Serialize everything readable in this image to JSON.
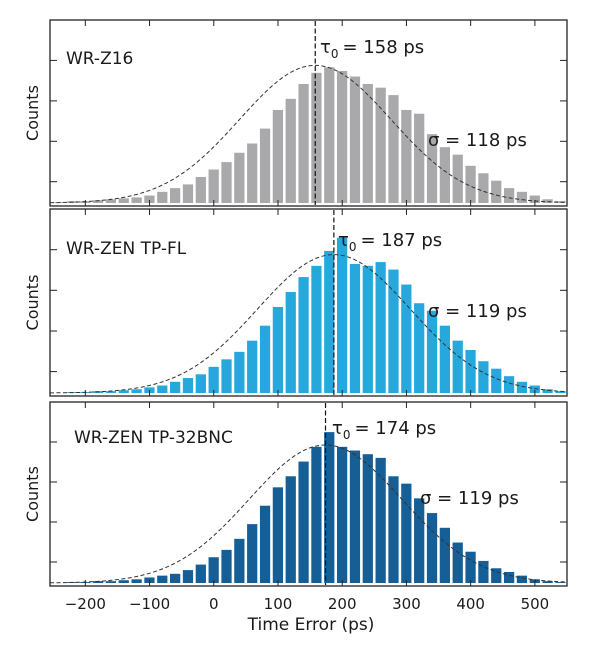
{
  "chart_data": {
    "type": "bar",
    "xlabel": "Time  Error (ps)",
    "ylabel": "Counts",
    "xlim": [
      -255,
      550
    ],
    "xticks": [
      -200,
      -100,
      0,
      100,
      200,
      300,
      400,
      500
    ],
    "bin_width": 20,
    "bin_starts": [
      -250,
      -230,
      -210,
      -190,
      -170,
      -150,
      -130,
      -110,
      -90,
      -70,
      -50,
      -30,
      -10,
      10,
      30,
      50,
      70,
      90,
      110,
      130,
      150,
      170,
      190,
      210,
      230,
      250,
      270,
      290,
      310,
      330,
      350,
      370,
      390,
      410,
      430,
      450,
      470,
      490,
      510,
      530
    ],
    "panels": [
      {
        "name": "WR-Z16",
        "color": "#a9a9ab",
        "tau_label": "τ",
        "tau_sub": "0",
        "tau_value": "= 158 ps",
        "tau0": 158,
        "sigma_label": "σ = 118 ps",
        "sigma": 118,
        "fit_peak": 0.74,
        "values": [
          0.005,
          0.01,
          0.01,
          0.015,
          0.02,
          0.025,
          0.03,
          0.04,
          0.06,
          0.08,
          0.1,
          0.14,
          0.18,
          0.22,
          0.27,
          0.32,
          0.4,
          0.5,
          0.56,
          0.64,
          0.7,
          0.73,
          0.71,
          0.68,
          0.64,
          0.62,
          0.58,
          0.5,
          0.48,
          0.37,
          0.3,
          0.26,
          0.2,
          0.16,
          0.12,
          0.08,
          0.06,
          0.04,
          0.02,
          0.01
        ]
      },
      {
        "name": "WR-ZEN TP-FL",
        "color": "#27a8dd",
        "tau_label": "τ",
        "tau_sub": "0",
        "tau_value": "= 187 ps",
        "tau0": 187,
        "sigma_label": "σ = 119 ps",
        "sigma": 119,
        "fit_peak": 0.74,
        "values": [
          0.0,
          0.005,
          0.005,
          0.01,
          0.01,
          0.015,
          0.02,
          0.03,
          0.04,
          0.06,
          0.08,
          0.1,
          0.14,
          0.18,
          0.22,
          0.28,
          0.36,
          0.46,
          0.54,
          0.62,
          0.68,
          0.76,
          0.83,
          0.69,
          0.68,
          0.7,
          0.66,
          0.58,
          0.48,
          0.44,
          0.36,
          0.28,
          0.23,
          0.17,
          0.13,
          0.09,
          0.06,
          0.04,
          0.02,
          0.01
        ]
      },
      {
        "name": "WR-ZEN TP-32BNC",
        "color": "#155e96",
        "tau_label": "τ",
        "tau_sub": "0",
        "tau_value": "= 174 ps",
        "tau0": 174,
        "sigma_label": "σ = 119 ps",
        "sigma": 119,
        "fit_peak": 0.75,
        "values": [
          0.0,
          0.005,
          0.005,
          0.01,
          0.01,
          0.015,
          0.02,
          0.03,
          0.04,
          0.05,
          0.07,
          0.1,
          0.14,
          0.18,
          0.24,
          0.32,
          0.42,
          0.52,
          0.58,
          0.66,
          0.74,
          0.82,
          0.74,
          0.72,
          0.7,
          0.68,
          0.58,
          0.54,
          0.46,
          0.38,
          0.3,
          0.22,
          0.17,
          0.12,
          0.08,
          0.06,
          0.04,
          0.02,
          0.01,
          0.005
        ]
      }
    ]
  }
}
